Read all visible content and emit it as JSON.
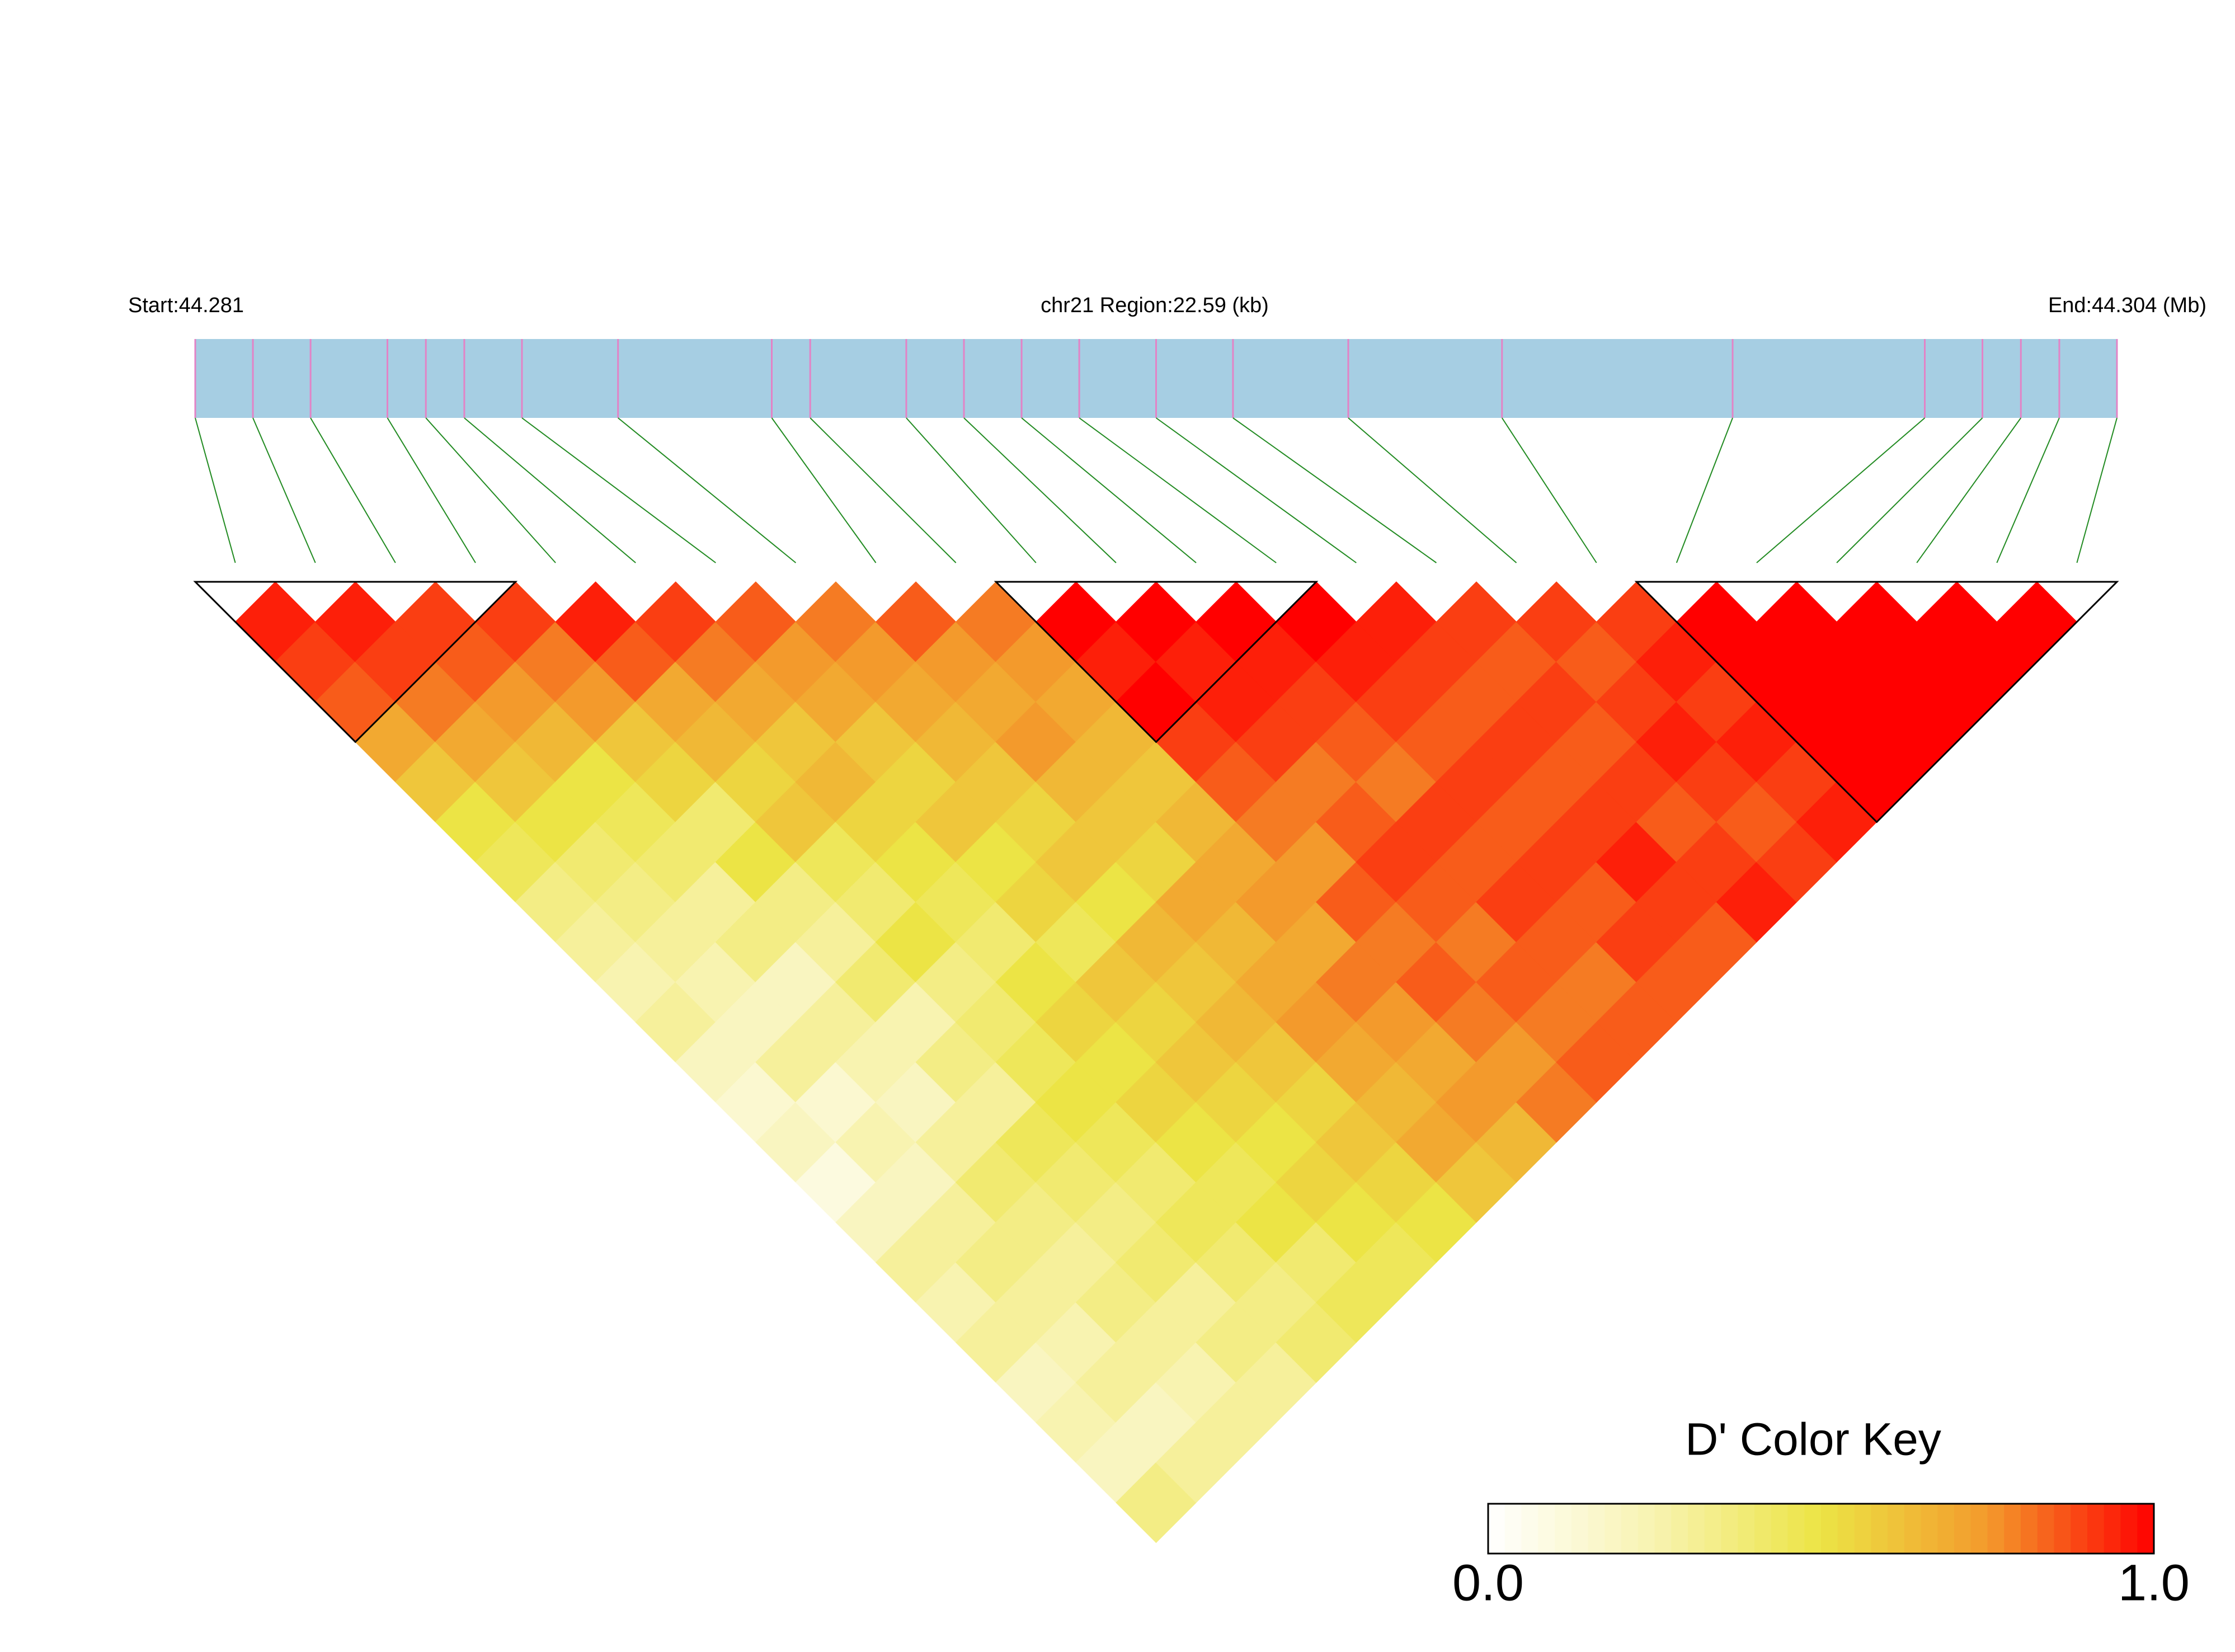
{
  "chart_data": {
    "type": "ld_heatmap",
    "title": "chr21 Region:22.59 (kb)",
    "start_label": "Start:44.281",
    "end_label": "End:44.304 (Mb)",
    "xlim": [
      44.281,
      44.304
    ],
    "positions": [
      44.281,
      44.28169,
      44.28238,
      44.2833,
      44.28376,
      44.28422,
      44.28491,
      44.28606,
      44.2879,
      44.28836,
      44.28951,
      44.2902,
      44.29089,
      44.29158,
      44.2925,
      44.29342,
      44.2948,
      44.29664,
      44.2994,
      44.3017,
      44.30239,
      44.30285,
      44.30331,
      44.304
    ],
    "dprime": [
      [
        0.95,
        0.9,
        0.85,
        0.7,
        0.6,
        0.5,
        0.45,
        0.35,
        0.3,
        0.25,
        0.3,
        0.2,
        0.15,
        0.2,
        0.1,
        0.2,
        0.3,
        0.25,
        0.3,
        0.2,
        0.25,
        0.2,
        0.35
      ],
      [
        0.95,
        0.9,
        0.8,
        0.7,
        0.6,
        0.5,
        0.4,
        0.35,
        0.3,
        0.25,
        0.2,
        0.3,
        0.15,
        0.25,
        0.2,
        0.3,
        0.35,
        0.3,
        0.25,
        0.3,
        0.2,
        0.3
      ],
      [
        0.9,
        0.85,
        0.75,
        0.65,
        0.5,
        0.45,
        0.4,
        0.3,
        0.35,
        0.2,
        0.3,
        0.25,
        0.2,
        0.3,
        0.4,
        0.35,
        0.3,
        0.35,
        0.3,
        0.25,
        0.3
      ],
      [
        0.9,
        0.8,
        0.75,
        0.6,
        0.55,
        0.4,
        0.5,
        0.35,
        0.3,
        0.4,
        0.25,
        0.35,
        0.3,
        0.45,
        0.4,
        0.35,
        0.4,
        0.3,
        0.35,
        0.3
      ],
      [
        0.95,
        0.85,
        0.7,
        0.65,
        0.55,
        0.6,
        0.45,
        0.4,
        0.5,
        0.35,
        0.4,
        0.45,
        0.5,
        0.45,
        0.4,
        0.45,
        0.4,
        0.35,
        0.4
      ],
      [
        0.9,
        0.8,
        0.7,
        0.6,
        0.65,
        0.55,
        0.5,
        0.45,
        0.4,
        0.5,
        0.55,
        0.5,
        0.55,
        0.5,
        0.45,
        0.5,
        0.4,
        0.45
      ],
      [
        0.85,
        0.75,
        0.7,
        0.6,
        0.55,
        0.6,
        0.5,
        0.55,
        0.45,
        0.6,
        0.55,
        0.6,
        0.55,
        0.5,
        0.55,
        0.5,
        0.45
      ],
      [
        0.8,
        0.75,
        0.7,
        0.65,
        0.6,
        0.55,
        0.6,
        0.5,
        0.65,
        0.6,
        0.65,
        0.6,
        0.55,
        0.6,
        0.55,
        0.5
      ],
      [
        0.85,
        0.75,
        0.7,
        0.75,
        0.65,
        0.6,
        0.55,
        0.7,
        0.65,
        0.7,
        0.75,
        0.7,
        0.65,
        0.7,
        0.6
      ],
      [
        0.8,
        0.75,
        0.7,
        0.65,
        0.6,
        0.65,
        0.7,
        0.75,
        0.7,
        0.8,
        0.75,
        0.7,
        0.75,
        0.65
      ],
      [
        1,
        0.95,
        1,
        0.9,
        0.85,
        0.8,
        0.75,
        0.85,
        0.8,
        0.85,
        0.8,
        0.75,
        0.8
      ],
      [
        1,
        0.95,
        0.95,
        0.9,
        0.8,
        0.85,
        0.9,
        0.85,
        0.8,
        0.85,
        0.8,
        0.85
      ],
      [
        1,
        0.95,
        0.9,
        0.85,
        0.8,
        0.9,
        0.85,
        0.9,
        0.85,
        0.8,
        0.85
      ],
      [
        1,
        0.95,
        0.9,
        0.85,
        0.9,
        0.85,
        0.9,
        0.85,
        0.9,
        0.85
      ],
      [
        0.95,
        0.9,
        0.85,
        0.9,
        0.85,
        0.9,
        0.95,
        0.9,
        0.85
      ],
      [
        0.9,
        0.85,
        0.9,
        0.85,
        0.9,
        0.85,
        0.9,
        0.95
      ],
      [
        0.9,
        0.85,
        0.9,
        0.95,
        0.9,
        0.85,
        0.9
      ],
      [
        0.9,
        0.95,
        0.9,
        0.95,
        0.9,
        0.95
      ],
      [
        1,
        1,
        1,
        1,
        1
      ],
      [
        1,
        1,
        1,
        1
      ],
      [
        1,
        1,
        1
      ],
      [
        1,
        1
      ],
      [
        1
      ]
    ],
    "blocks": [
      [
        0,
        3
      ],
      [
        10,
        13
      ],
      [
        18,
        23
      ]
    ],
    "colors": [
      "#ffffff",
      "#f8f3b0",
      "#ece445",
      "#f39a2c",
      "#ff0000"
    ],
    "bar_color": "#a6cee3",
    "tick_color": "#e383c6",
    "connector_color": "#228b22",
    "block_color": "#000000",
    "legend": {
      "title": "D' Color Key",
      "lim": [
        0,
        1
      ],
      "ticks": [
        {
          "value": 0,
          "label": "0.0"
        },
        {
          "value": 1,
          "label": "1.0"
        }
      ]
    }
  }
}
